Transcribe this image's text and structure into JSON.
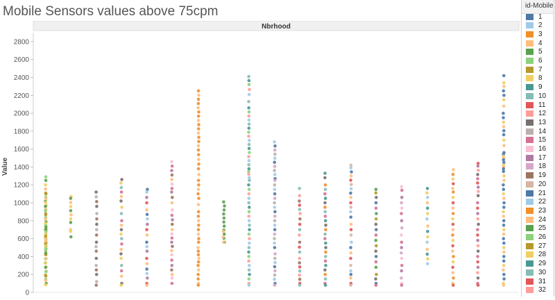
{
  "title": "Mobile Sensors values above 75cpm",
  "legend": {
    "title": "id-Mobile",
    "items": [
      {
        "label": "1",
        "color": "#4e79a7"
      },
      {
        "label": "2",
        "color": "#a0cbe8"
      },
      {
        "label": "3",
        "color": "#f28e2b"
      },
      {
        "label": "4",
        "color": "#ffbe7d"
      },
      {
        "label": "5",
        "color": "#59a14f"
      },
      {
        "label": "6",
        "color": "#8cd17d"
      },
      {
        "label": "7",
        "color": "#b6992d"
      },
      {
        "label": "8",
        "color": "#f1ce63"
      },
      {
        "label": "9",
        "color": "#499894"
      },
      {
        "label": "10",
        "color": "#86bcb6"
      },
      {
        "label": "11",
        "color": "#e15759"
      },
      {
        "label": "12",
        "color": "#ff9d9a"
      },
      {
        "label": "13",
        "color": "#79706e"
      },
      {
        "label": "14",
        "color": "#bab0ac"
      },
      {
        "label": "15",
        "color": "#d37295"
      },
      {
        "label": "16",
        "color": "#fabfd2"
      },
      {
        "label": "17",
        "color": "#b07aa1"
      },
      {
        "label": "18",
        "color": "#d4a6c8"
      },
      {
        "label": "19",
        "color": "#9d7660"
      },
      {
        "label": "20",
        "color": "#d7b5a6"
      },
      {
        "label": "21",
        "color": "#4e79a7"
      },
      {
        "label": "22",
        "color": "#a0cbe8"
      },
      {
        "label": "23",
        "color": "#f28e2b"
      },
      {
        "label": "24",
        "color": "#ffbe7d"
      },
      {
        "label": "25",
        "color": "#59a14f"
      },
      {
        "label": "26",
        "color": "#8cd17d"
      },
      {
        "label": "27",
        "color": "#b6992d"
      },
      {
        "label": "28",
        "color": "#f1ce63"
      },
      {
        "label": "29",
        "color": "#499894"
      },
      {
        "label": "30",
        "color": "#86bcb6"
      },
      {
        "label": "31",
        "color": "#e15759"
      },
      {
        "label": "32",
        "color": "#ff9d9a"
      }
    ]
  },
  "chart_data": {
    "type": "scatter",
    "title": "Mobile Sensors values above 75cpm",
    "header": "Nbrhood",
    "ylabel": "Value",
    "ylim": [
      0,
      2900
    ],
    "yticks": [
      0,
      200,
      400,
      600,
      800,
      1000,
      1200,
      1400,
      1600,
      1800,
      2000,
      2200,
      2400,
      2600,
      2800
    ],
    "grid": false,
    "legend_position": "right",
    "columns": [
      {
        "colors": [
          "#8cd17d",
          "#59a14f",
          "#f1ce63",
          "#ffbe7d",
          "#b6992d"
        ],
        "min": 80,
        "max": 1290,
        "extra": [
          1290,
          1250,
          1200,
          100,
          85,
          620,
          700,
          750,
          440,
          520,
          680,
          820,
          960,
          1050,
          1100
        ]
      },
      {
        "colors": [
          "#f1ce63",
          "#59a14f",
          "#ffbe7d"
        ],
        "min": 600,
        "max": 1070,
        "extra": [
          1070,
          1050,
          820,
          780,
          700,
          680,
          620
        ]
      },
      {
        "colors": [
          "#79706e",
          "#bab0ac",
          "#9d7660"
        ],
        "min": 80,
        "max": 1120,
        "extra": [
          1120,
          960,
          880,
          760,
          700,
          640,
          560,
          460,
          380,
          300,
          200,
          120,
          80
        ]
      },
      {
        "colors": [
          "#79706e",
          "#f1ce63",
          "#86bcb6",
          "#d37295",
          "#ffbe7d"
        ],
        "min": 80,
        "max": 1260,
        "extra": [
          1260,
          1220,
          1020,
          950,
          880,
          800,
          700,
          600,
          480,
          380,
          300,
          180,
          100,
          80
        ]
      },
      {
        "colors": [
          "#4e79a7",
          "#a0cbe8",
          "#b07aa1",
          "#e15759",
          "#ffbe7d"
        ],
        "min": 80,
        "max": 1150,
        "extra": [
          1150,
          1120,
          1000,
          920,
          820,
          760,
          700,
          640,
          560,
          460,
          380,
          260,
          160,
          100,
          80
        ]
      },
      {
        "colors": [
          "#fabfd2",
          "#d37295",
          "#b07aa1",
          "#9d7660",
          "#ffbe7d"
        ],
        "min": 80,
        "max": 1460,
        "extra": [
          1460,
          1160,
          1120,
          1000,
          920,
          860,
          760,
          700,
          560,
          420,
          300,
          200,
          160,
          100
        ]
      },
      {
        "colors": [
          "#f28e2b",
          "#ffbe7d",
          "#f28e2b"
        ],
        "min": 80,
        "max": 2250,
        "extra": [
          2250,
          1590,
          1380,
          1250,
          1200,
          1150,
          1050,
          980,
          900,
          850,
          800,
          750,
          700,
          650,
          600,
          560,
          500,
          460,
          420,
          380,
          340,
          300,
          250,
          200,
          150,
          100,
          80
        ]
      },
      {
        "colors": [
          "#59a14f"
        ],
        "min": 560,
        "max": 1010,
        "extra": [
          1010,
          560
        ]
      },
      {
        "colors": [
          "#ffbe7d"
        ],
        "min": 560,
        "max": 680,
        "extra": [
          680,
          560
        ]
      },
      {
        "colors": [
          "#86bcb6",
          "#499894",
          "#8cd17d",
          "#ff9d9a",
          "#a0cbe8"
        ],
        "min": 80,
        "max": 2410,
        "extra": [
          2410,
          2320,
          2210,
          2130,
          2060,
          1380,
          1350,
          1320,
          1280,
          1250,
          1200,
          1150,
          1100,
          1050,
          1000,
          950,
          900,
          850,
          800,
          750,
          700,
          650,
          600,
          550,
          500,
          450,
          400,
          350,
          300,
          250,
          200,
          150,
          100,
          80
        ]
      },
      {
        "colors": [
          "#a0cbe8",
          "#4e79a7",
          "#d4a6c8",
          "#bab0ac"
        ],
        "min": 80,
        "max": 1680,
        "extra": [
          1680,
          1270,
          1250,
          1200,
          1150,
          1100,
          1000,
          950,
          900,
          850,
          800,
          750,
          700,
          650,
          600,
          550,
          500,
          430,
          380,
          100,
          80
        ]
      },
      {
        "colors": [
          "#86bcb6",
          "#ff9d9a",
          "#9d7660",
          "#e15759"
        ],
        "min": 80,
        "max": 1160,
        "extra": [
          1160,
          1080,
          1020,
          880,
          820,
          700,
          640,
          560,
          450,
          380,
          330,
          100,
          80
        ]
      },
      {
        "colors": [
          "#499894",
          "#79706e",
          "#f28e2b",
          "#86bcb6",
          "#d37295"
        ],
        "min": 80,
        "max": 1330,
        "extra": [
          1330,
          1280,
          1200,
          1100,
          1050,
          1000,
          950,
          900,
          850,
          800,
          750,
          700,
          650,
          600,
          550,
          500,
          450,
          400,
          350,
          300,
          250,
          200,
          150,
          100,
          80
        ]
      },
      {
        "colors": [
          "#d7b5a6",
          "#a0cbe8",
          "#4e79a7",
          "#ffbe7d",
          "#e15759"
        ],
        "min": 80,
        "max": 1420,
        "extra": [
          1420,
          1390,
          1300,
          1060,
          1000,
          900,
          840,
          760,
          700,
          640,
          560,
          500,
          440,
          380,
          300,
          240,
          200,
          160,
          100,
          80
        ]
      },
      {
        "colors": [
          "#59a14f",
          "#b6992d",
          "#79706e",
          "#4e79a7",
          "#d37295"
        ],
        "min": 80,
        "max": 1150,
        "extra": [
          1150,
          1110,
          1060,
          1000,
          940,
          880,
          820,
          760,
          700,
          640,
          580,
          520,
          460,
          400,
          340,
          280,
          200,
          100,
          80
        ]
      },
      {
        "colors": [
          "#fabfd2",
          "#d37295",
          "#b07aa1",
          "#d4a6c8"
        ],
        "min": 80,
        "max": 1180,
        "extra": [
          1180,
          1140,
          1060,
          1000,
          940,
          880,
          800,
          720,
          640,
          560,
          500,
          440,
          380,
          300,
          240,
          160,
          100,
          80
        ]
      },
      {
        "colors": [
          "#499894",
          "#f1ce63",
          "#a0cbe8",
          "#ffbe7d"
        ],
        "min": 320,
        "max": 1160,
        "extra": [
          1160,
          1060,
          940,
          820,
          740,
          680,
          560,
          480,
          320
        ]
      },
      {
        "colors": [
          "#ffbe7d",
          "#f28e2b",
          "#f1ce63",
          "#e15759"
        ],
        "min": 80,
        "max": 1370,
        "extra": [
          1370,
          1160,
          1120,
          1060,
          1000,
          940,
          880,
          820,
          760,
          700,
          640,
          580,
          520,
          460,
          400,
          340,
          280,
          220,
          160,
          100,
          80
        ]
      },
      {
        "colors": [
          "#e15759",
          "#b07aa1",
          "#ff9d9a",
          "#79706e",
          "#d37295"
        ],
        "min": 80,
        "max": 1440,
        "extra": [
          1440,
          1410,
          1080,
          1000,
          940,
          880,
          820,
          760,
          700,
          640,
          580,
          520,
          460,
          400,
          340,
          280,
          220,
          160,
          100,
          80
        ]
      },
      {
        "colors": [
          "#4e79a7",
          "#f1ce63",
          "#ffbe7d",
          "#4e79a7"
        ],
        "min": 80,
        "max": 2420,
        "extra": [
          2420,
          2340,
          2300,
          2200,
          2150,
          2080,
          2000,
          1950,
          1900,
          1850,
          1760,
          1700,
          1640,
          1560,
          1540,
          1520,
          1500,
          1480,
          1450,
          1420,
          1400,
          1380,
          1350,
          1300,
          1250,
          1200,
          1150,
          1100,
          1050,
          1000,
          950,
          900,
          850,
          800,
          750,
          700,
          650,
          600,
          550,
          500,
          450,
          400,
          350,
          300,
          250,
          200,
          150,
          100,
          80
        ]
      }
    ]
  }
}
